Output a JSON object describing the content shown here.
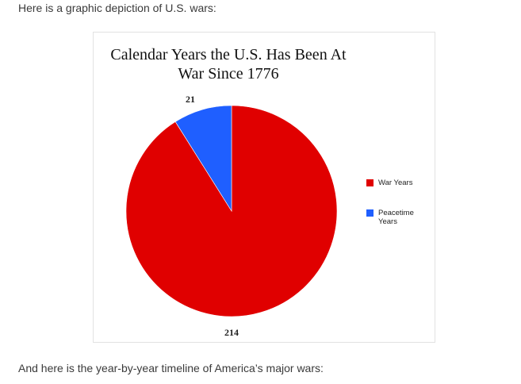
{
  "page": {
    "intro_text": "Here is a graphic depiction of U.S. wars:",
    "outro_text": "And here is the year-by-year timeline of America’s major wars:"
  },
  "chart_data": {
    "type": "pie",
    "title_line1": "Calendar Years the U.S. Has Been At",
    "title_line2": "War Since 1776",
    "slices": [
      {
        "name": "War Years",
        "value": 214,
        "color": "#e00000",
        "label": "214"
      },
      {
        "name": "Peacetime Years",
        "value": 21,
        "color": "#1f5fff",
        "label": "21"
      }
    ],
    "legend": {
      "placement": "right",
      "entries": [
        {
          "label": "War Years",
          "color": "#e00000"
        },
        {
          "label": "Peacetime Years",
          "color": "#1f5fff"
        }
      ]
    }
  }
}
